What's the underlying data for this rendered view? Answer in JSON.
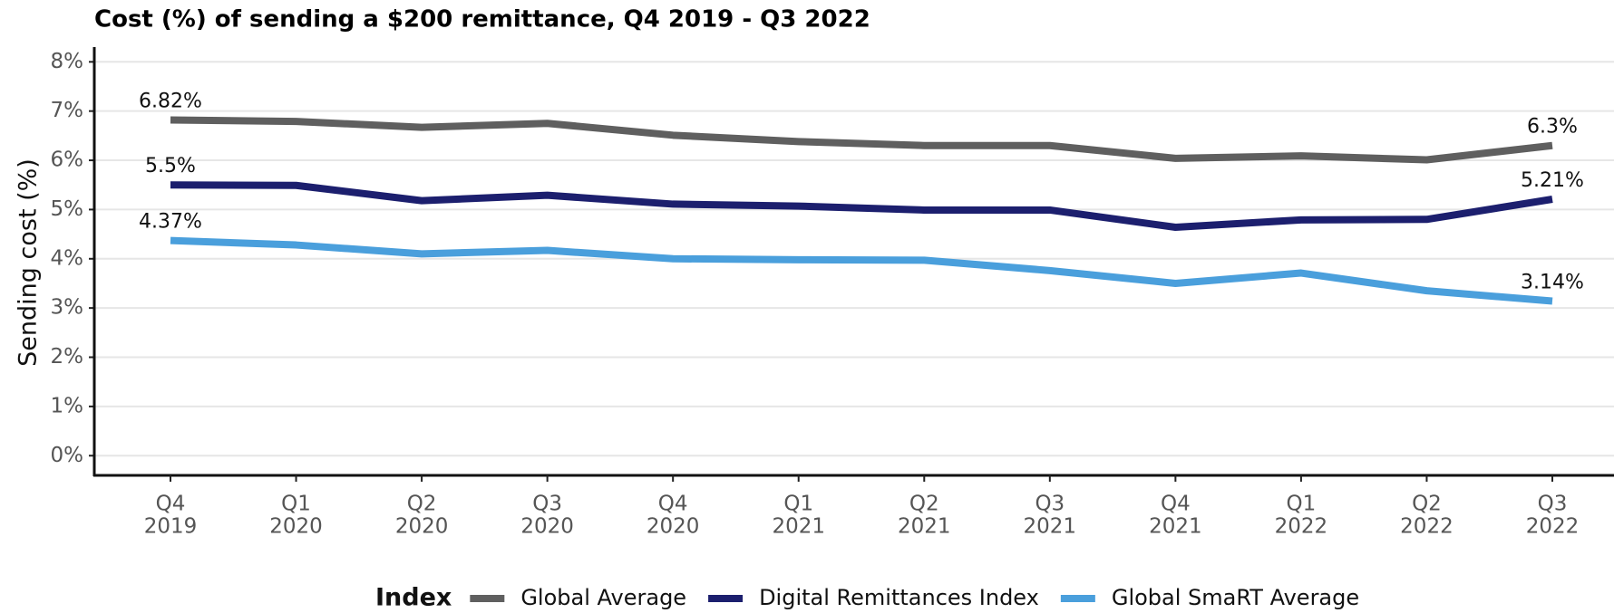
{
  "chart_data": {
    "type": "line",
    "title": "Cost (%) of sending a $200 remittance, Q4 2019 - Q3 2022",
    "y_label": "Sending cost (%)",
    "legend_title": "Index",
    "legend": "bottom",
    "grid": true,
    "categories": [
      [
        "Q4",
        "2019"
      ],
      [
        "Q1",
        "2020"
      ],
      [
        "Q2",
        "2020"
      ],
      [
        "Q3",
        "2020"
      ],
      [
        "Q4",
        "2020"
      ],
      [
        "Q1",
        "2021"
      ],
      [
        "Q2",
        "2021"
      ],
      [
        "Q3",
        "2021"
      ],
      [
        "Q4",
        "2021"
      ],
      [
        "Q1",
        "2022"
      ],
      [
        "Q2",
        "2022"
      ],
      [
        "Q3",
        "2022"
      ]
    ],
    "ylim": [
      -0.4,
      8.3
    ],
    "yticks": [
      {
        "value": 0,
        "label": "0%"
      },
      {
        "value": 1,
        "label": "1%"
      },
      {
        "value": 2,
        "label": "2%"
      },
      {
        "value": 3,
        "label": "3%"
      },
      {
        "value": 4,
        "label": "4%"
      },
      {
        "value": 5,
        "label": "5%"
      },
      {
        "value": 6,
        "label": "6%"
      },
      {
        "value": 7,
        "label": "7%"
      },
      {
        "value": 8,
        "label": "8%"
      }
    ],
    "series": [
      {
        "name": "Global Average",
        "color": "#5f5f5f",
        "values": [
          6.82,
          6.79,
          6.67,
          6.75,
          6.51,
          6.38,
          6.3,
          6.3,
          6.04,
          6.09,
          6.01,
          6.3
        ],
        "value_labels": [
          "6.82%",
          null,
          null,
          null,
          null,
          null,
          null,
          null,
          null,
          null,
          null,
          "6.3%"
        ]
      },
      {
        "name": "Digital Remittances Index",
        "color": "#1c1f6e",
        "values": [
          5.5,
          5.49,
          5.18,
          5.29,
          5.11,
          5.07,
          4.99,
          4.99,
          4.64,
          4.79,
          4.8,
          5.21
        ],
        "value_labels": [
          "5.5%",
          null,
          null,
          null,
          null,
          null,
          null,
          null,
          null,
          null,
          null,
          "5.21%"
        ]
      },
      {
        "name": "Global SmaRT Average",
        "color": "#4a9fdc",
        "values": [
          4.37,
          4.28,
          4.1,
          4.17,
          4.0,
          3.98,
          3.97,
          3.76,
          3.5,
          3.71,
          3.35,
          3.14
        ],
        "value_labels": [
          "4.37%",
          null,
          null,
          null,
          null,
          null,
          null,
          null,
          null,
          null,
          null,
          "3.14%"
        ]
      }
    ]
  }
}
